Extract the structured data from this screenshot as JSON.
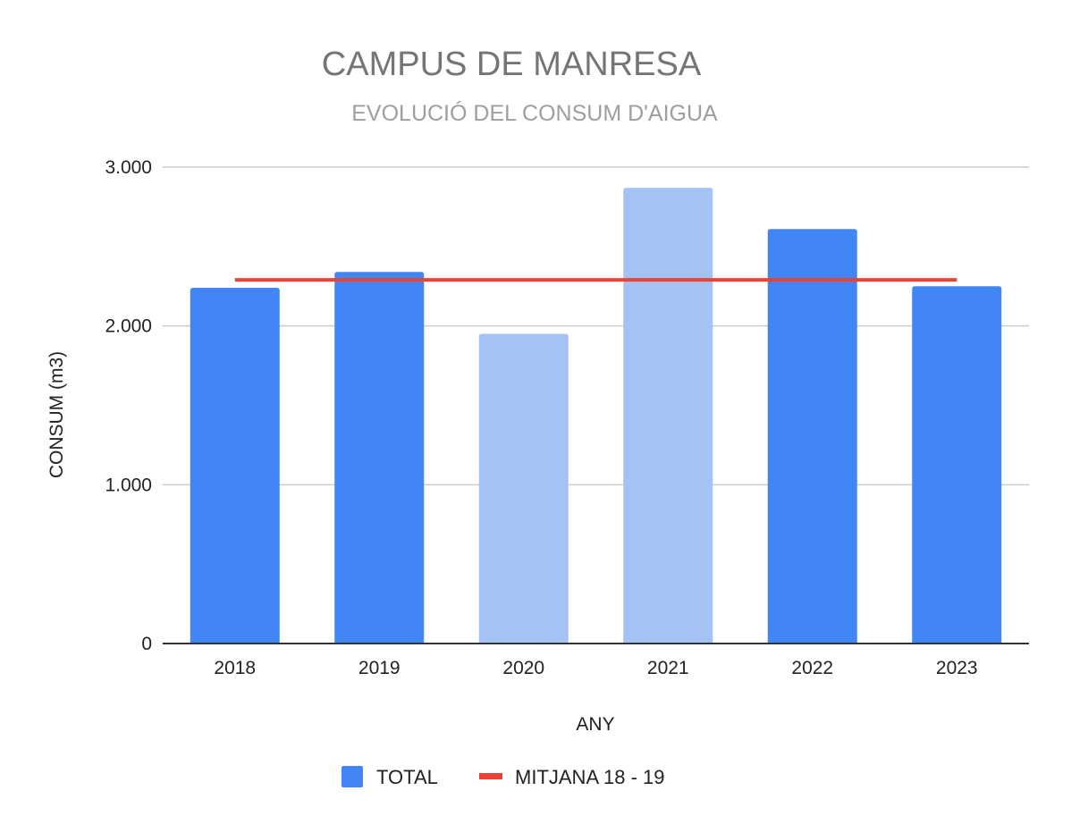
{
  "chart_data": {
    "type": "bar",
    "title": "CAMPUS DE MANRESA",
    "subtitle": "EVOLUCIÓ DEL CONSUM D'AIGUA",
    "xlabel": "ANY",
    "ylabel": "CONSUM (m3)",
    "categories": [
      "2018",
      "2019",
      "2020",
      "2021",
      "2022",
      "2023"
    ],
    "series": [
      {
        "name": "TOTAL",
        "type": "bar",
        "values": [
          2240,
          2340,
          1950,
          2870,
          2610,
          2250
        ],
        "colors": [
          "#4285f4",
          "#4285f4",
          "#a4c2f4",
          "#a4c2f4",
          "#4285f4",
          "#4285f4"
        ]
      },
      {
        "name": "MITJANA 18 - 19",
        "type": "line",
        "values": [
          2290,
          2290,
          2290,
          2290,
          2290,
          2290
        ],
        "color": "#ea4335"
      }
    ],
    "ylim": [
      0,
      3000
    ],
    "yticks": [
      0,
      1000,
      2000,
      3000
    ],
    "ytick_labels": [
      "0",
      "1.000",
      "2.000",
      "3.000"
    ],
    "grid": true,
    "legend_position": "bottom",
    "legend": [
      {
        "label": "TOTAL",
        "color": "#4285f4",
        "marker": "square"
      },
      {
        "label": "MITJANA 18 - 19",
        "color": "#ea4335",
        "marker": "line"
      }
    ]
  }
}
